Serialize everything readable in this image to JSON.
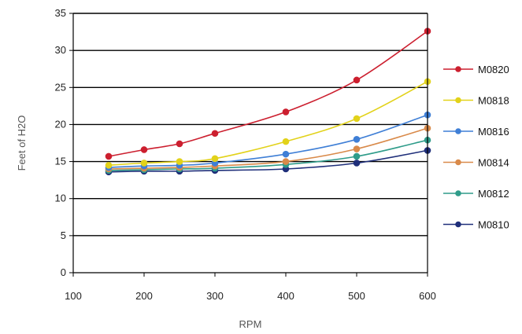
{
  "chart_data": {
    "type": "line",
    "title": "",
    "xlabel": "RPM",
    "ylabel": "Feet of H2O",
    "xlim": [
      100,
      600
    ],
    "ylim": [
      0,
      35
    ],
    "xticks": [
      "100",
      "200",
      "300",
      "400",
      "500",
      "600"
    ],
    "yticks": [
      "0",
      "5",
      "10",
      "15",
      "20",
      "25",
      "30",
      "35"
    ],
    "x": [
      150,
      200,
      250,
      300,
      400,
      500,
      600
    ],
    "grid": "horizontal",
    "legend_position": "right",
    "series": [
      {
        "name": "M0820",
        "color": "#cc1f2f",
        "marker": "circle",
        "values": [
          15.7,
          16.6,
          17.4,
          18.8,
          21.7,
          26.0,
          32.6
        ]
      },
      {
        "name": "M0818",
        "color": "#e2d21a",
        "marker": "circle",
        "values": [
          14.5,
          14.8,
          15.0,
          15.4,
          17.7,
          20.8,
          25.8
        ]
      },
      {
        "name": "M0816",
        "color": "#3f7fd6",
        "marker": "circle",
        "values": [
          14.2,
          14.4,
          14.5,
          14.8,
          16.0,
          18.0,
          21.3
        ]
      },
      {
        "name": "M0814",
        "color": "#d98a4a",
        "marker": "circle",
        "values": [
          14.0,
          14.1,
          14.2,
          14.4,
          15.0,
          16.7,
          19.5
        ]
      },
      {
        "name": "M0812",
        "color": "#2f9c8a",
        "marker": "circle",
        "values": [
          13.8,
          13.9,
          14.0,
          14.1,
          14.6,
          15.7,
          17.9
        ]
      },
      {
        "name": "M0810",
        "color": "#1f2f7a",
        "marker": "circle",
        "values": [
          13.6,
          13.7,
          13.7,
          13.8,
          14.0,
          14.8,
          16.5
        ]
      }
    ]
  }
}
